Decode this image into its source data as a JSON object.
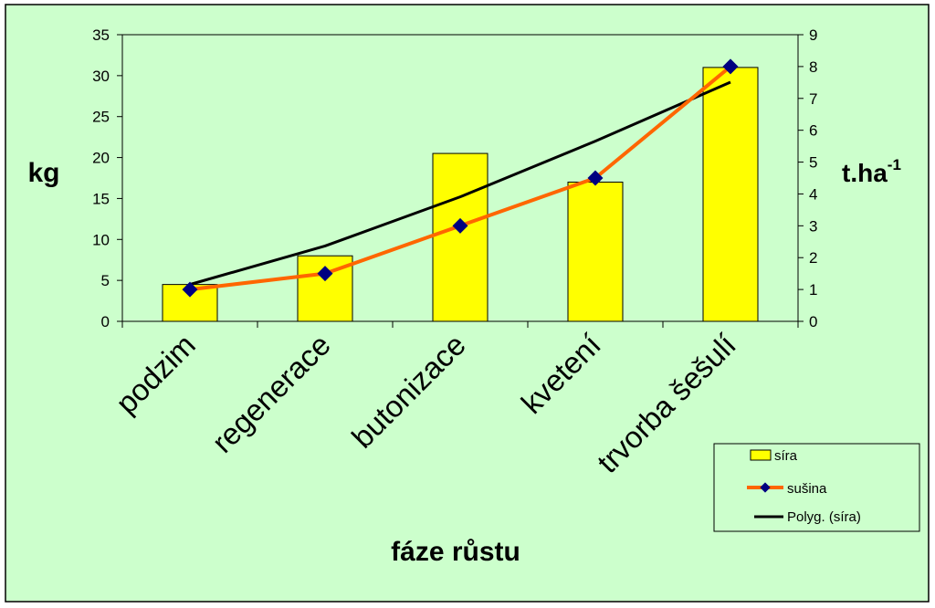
{
  "chart_data": {
    "type": "bar",
    "categories": [
      "podzim",
      "regenerace",
      "butonizace",
      "kvetení",
      "trvorba šešulí"
    ],
    "series": [
      {
        "name": "síra",
        "type": "bar",
        "axis": "left",
        "color": "#FFFF00",
        "values": [
          4.5,
          8.0,
          20.5,
          17.0,
          31.0
        ]
      },
      {
        "name": "sušina",
        "type": "line",
        "axis": "right",
        "color": "#FF6600",
        "marker_color": "#000080",
        "values": [
          1.0,
          1.5,
          3.0,
          4.5,
          8.0
        ]
      },
      {
        "name": "Polyg. (síra)",
        "type": "trendline",
        "axis": "left",
        "color": "#000000",
        "values": [
          4.5,
          9.2,
          15.2,
          22.0,
          29.2
        ]
      }
    ],
    "xlabel": "fáze růstu",
    "ylabel": "kg",
    "y2label": {
      "base": "t.ha",
      "sup": "-1"
    },
    "ylim": [
      0,
      35
    ],
    "yticks": [
      0,
      5,
      10,
      15,
      20,
      25,
      30,
      35
    ],
    "y2lim": [
      0,
      9
    ],
    "y2ticks": [
      0,
      1,
      2,
      3,
      4,
      5,
      6,
      7,
      8,
      9
    ],
    "legend_position": "bottom-right",
    "grid": false,
    "colors": {
      "background": "#CCFFCC",
      "border": "#000000"
    }
  }
}
